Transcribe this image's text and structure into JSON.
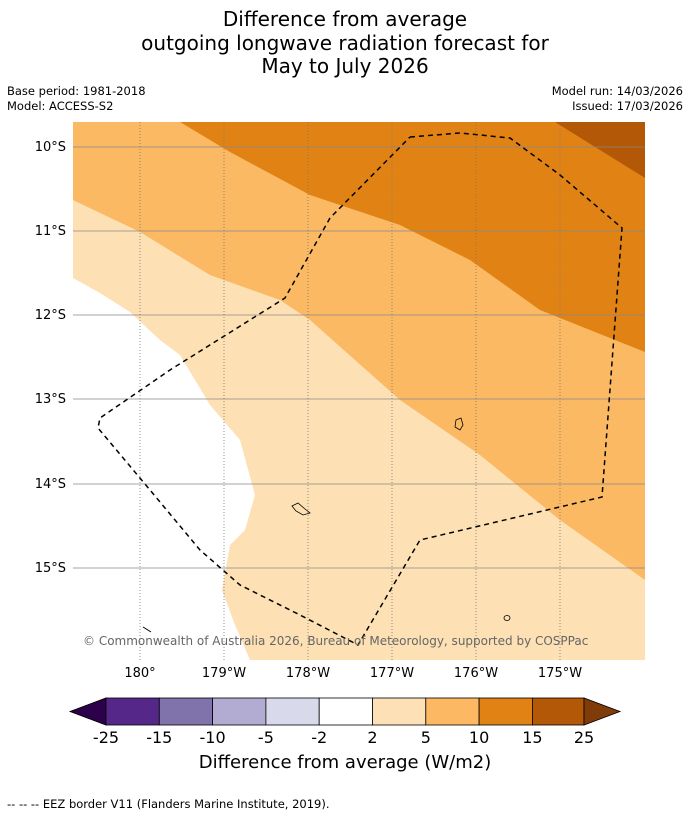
{
  "title": {
    "line1": "Difference from average",
    "line2": "outgoing longwave radiation forecast for",
    "line3": "May to July 2026"
  },
  "meta": {
    "base_period": "Base period: 1981-2018",
    "model": "Model: ACCESS-S2",
    "model_run": "Model run: 14/03/2026",
    "issued": "Issued: 17/03/2026"
  },
  "map": {
    "lat_labels": [
      "10°S",
      "11°S",
      "12°S",
      "13°S",
      "14°S",
      "15°S"
    ],
    "lon_labels": [
      "180°",
      "179°W",
      "178°W",
      "177°W",
      "176°W",
      "175°W"
    ],
    "copyright": "© Commonwealth of Australia 2026, Bureau of Meteorology, supported by COSPPac",
    "colors": {
      "band_2_5": "#fde0b4",
      "band_5_10": "#fbb964",
      "band_10_15": "#e08214",
      "band_15_25": "#b35806"
    }
  },
  "colorbar": {
    "ticks": [
      "-25",
      "-15",
      "-10",
      "-5",
      "-2",
      "2",
      "5",
      "10",
      "15",
      "25"
    ],
    "colors": [
      "#2d004b",
      "#542788",
      "#8073ac",
      "#b2abd2",
      "#d8daeb",
      "#ffffff",
      "#fee0b6",
      "#fdb863",
      "#e08214",
      "#b35806",
      "#7f3b08"
    ],
    "title": "Difference from average (W/m2)"
  },
  "footer": {
    "legend_symbol": "-- -- --",
    "legend_text": "EEZ border V11 (Flanders Marine Institute, 2019)."
  }
}
